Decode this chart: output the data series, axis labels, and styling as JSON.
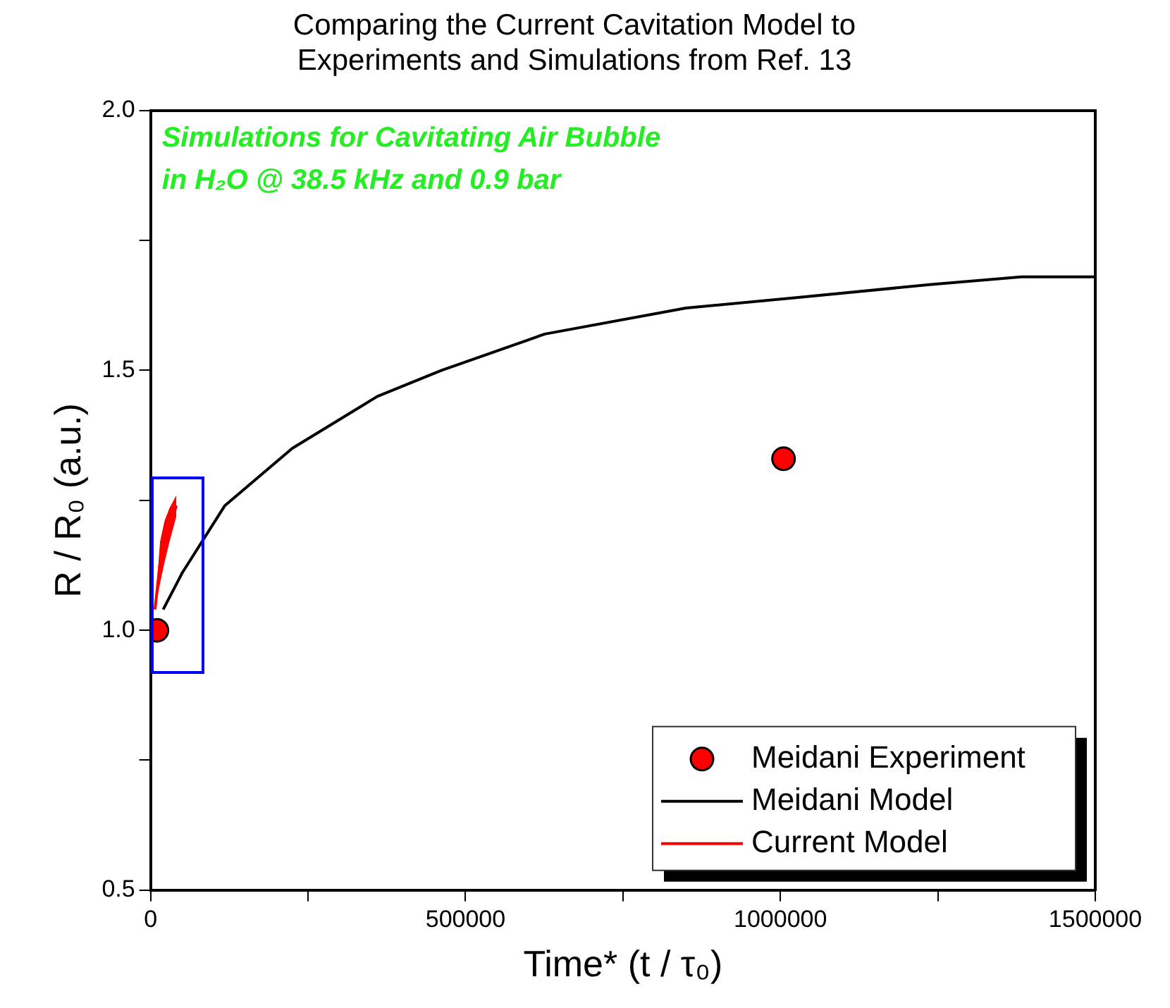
{
  "chart_data": {
    "type": "line",
    "title": "Comparing the Current Cavitation Model to\nExperiments and Simulations from Ref. 13",
    "xlabel": "Time* (t / τ₀)",
    "ylabel": "R / R₀ (a.u.)",
    "annotations": [
      "Simulations for Cavitating Air Bubble\nin H₂O @ 38.5 kHz and 0.9 bar"
    ],
    "xlim": [
      0,
      1500000
    ],
    "xticks": [
      0,
      {
        "value": 250000,
        "label": null
      },
      500000,
      {
        "value": 750000,
        "label": null
      },
      1000000,
      {
        "value": 1250000,
        "label": null
      },
      1500000
    ],
    "ylim": [
      0.5,
      2.0
    ],
    "yticks": [
      {
        "value": 0.5,
        "label": "0.5"
      },
      {
        "value": 0.75,
        "label": null
      },
      {
        "value": 1,
        "label": "1.0"
      },
      {
        "value": 1.25,
        "label": null
      },
      {
        "value": 1.5,
        "label": "1.5"
      },
      {
        "value": 1.75,
        "label": null
      },
      {
        "value": 2,
        "label": "2.0"
      }
    ],
    "grid": false,
    "legend": "bottom right",
    "series": [
      {
        "name": "Meidani Experiment",
        "type": "scatter",
        "marker": "circle",
        "color": "#ff0000",
        "x": [
          10000,
          1005000
        ],
        "values": [
          1.0,
          1.33
        ]
      },
      {
        "name": "Meidani Model",
        "color": "#000000",
        "x": [
          20000,
          50000,
          118000,
          225000,
          360000,
          462000,
          626000,
          850000,
          1025000,
          1237000,
          1383000,
          1500000
        ],
        "values": [
          1.04,
          1.11,
          1.24,
          1.35,
          1.45,
          1.5,
          1.57,
          1.62,
          1.64,
          1.665,
          1.68,
          1.68
        ]
      },
      {
        "name": "Current Model",
        "color": "#ff0000",
        "x": [
          7000,
          15000,
          22000,
          30000,
          41000
        ],
        "values": [
          1.04,
          1.13,
          1.17,
          1.2,
          1.24
        ],
        "lower": [
          1.04,
          1.09,
          1.13,
          1.17,
          1.22
        ],
        "upper": [
          1.04,
          1.17,
          1.21,
          1.235,
          1.26
        ]
      }
    ]
  }
}
